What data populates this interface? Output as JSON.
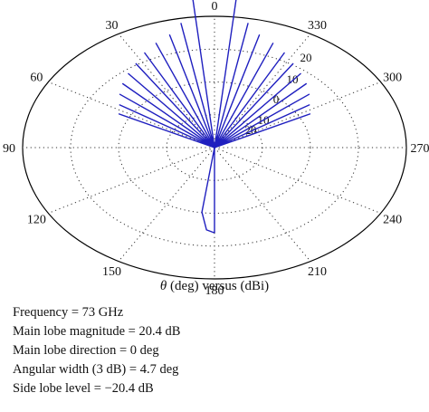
{
  "chart_data": {
    "type": "polar",
    "angle_labels": [
      "0",
      "30",
      "60",
      "90",
      "120",
      "150",
      "180",
      "210",
      "240",
      "270",
      "300",
      "330"
    ],
    "angle_directions_deg": [
      0,
      30,
      60,
      90,
      120,
      150,
      180,
      210,
      240,
      270,
      300,
      330
    ],
    "radial_tick_labels": [
      "20",
      "10",
      "0",
      "10",
      "20"
    ],
    "radial_range_dbi": [
      -20.4,
      20.4
    ],
    "grid": true,
    "axis_label_prefix": "θ",
    "axis_label_rest": " (deg) versus (dBi)",
    "line_color": "#1f1fbf",
    "grid_color": "#333333",
    "pattern": [
      {
        "theta_deg": -180,
        "gain_dbi": -7.6
      },
      {
        "theta_deg": -150,
        "gain_dbi": -20.4
      },
      {
        "theta_deg": -120,
        "gain_dbi": -20.4
      },
      {
        "theta_deg": -90,
        "gain_dbi": -20.4
      },
      {
        "theta_deg": -75,
        "gain_dbi": -20.4
      },
      {
        "theta_deg": -64,
        "gain_dbi": -8.9
      },
      {
        "theta_deg": -62,
        "gain_dbi": -20.4
      },
      {
        "theta_deg": -58,
        "gain_dbi": -8.3
      },
      {
        "theta_deg": -56,
        "gain_dbi": -20.4
      },
      {
        "theta_deg": -52,
        "gain_dbi": -7.4
      },
      {
        "theta_deg": -50,
        "gain_dbi": -20.4
      },
      {
        "theta_deg": -46,
        "gain_dbi": -6.6
      },
      {
        "theta_deg": -44,
        "gain_dbi": -20.4
      },
      {
        "theta_deg": -40,
        "gain_dbi": -5.9
      },
      {
        "theta_deg": -38,
        "gain_dbi": -20.4
      },
      {
        "theta_deg": -34,
        "gain_dbi": -5.2
      },
      {
        "theta_deg": -32,
        "gain_dbi": -20.4
      },
      {
        "theta_deg": -28,
        "gain_dbi": -4.3
      },
      {
        "theta_deg": -26,
        "gain_dbi": -20.4
      },
      {
        "theta_deg": -22,
        "gain_dbi": -3.5
      },
      {
        "theta_deg": -20,
        "gain_dbi": -20.4
      },
      {
        "theta_deg": -16,
        "gain_dbi": -2.8
      },
      {
        "theta_deg": -14,
        "gain_dbi": -20.4
      },
      {
        "theta_deg": -11,
        "gain_dbi": -1.4
      },
      {
        "theta_deg": -9,
        "gain_dbi": -20.4
      },
      {
        "theta_deg": -6,
        "gain_dbi": 2.0
      },
      {
        "theta_deg": -4.5,
        "gain_dbi": 13.0
      },
      {
        "theta_deg": -3,
        "gain_dbi": 18.2
      },
      {
        "theta_deg": -1.5,
        "gain_dbi": 20.0
      },
      {
        "theta_deg": 0,
        "gain_dbi": 20.4
      },
      {
        "theta_deg": 1.5,
        "gain_dbi": 20.0
      },
      {
        "theta_deg": 3,
        "gain_dbi": 18.2
      },
      {
        "theta_deg": 4.5,
        "gain_dbi": 13.0
      },
      {
        "theta_deg": 6,
        "gain_dbi": 2.0
      },
      {
        "theta_deg": 9,
        "gain_dbi": -20.4
      },
      {
        "theta_deg": 11,
        "gain_dbi": -1.4
      },
      {
        "theta_deg": 14,
        "gain_dbi": -20.4
      },
      {
        "theta_deg": 16,
        "gain_dbi": -2.8
      },
      {
        "theta_deg": 20,
        "gain_dbi": -20.4
      },
      {
        "theta_deg": 22,
        "gain_dbi": -3.5
      },
      {
        "theta_deg": 26,
        "gain_dbi": -20.4
      },
      {
        "theta_deg": 28,
        "gain_dbi": -4.3
      },
      {
        "theta_deg": 32,
        "gain_dbi": -20.4
      },
      {
        "theta_deg": 34,
        "gain_dbi": -5.2
      },
      {
        "theta_deg": 38,
        "gain_dbi": -20.4
      },
      {
        "theta_deg": 40,
        "gain_dbi": -5.9
      },
      {
        "theta_deg": 44,
        "gain_dbi": -20.4
      },
      {
        "theta_deg": 46,
        "gain_dbi": -6.6
      },
      {
        "theta_deg": 50,
        "gain_dbi": -20.4
      },
      {
        "theta_deg": 52,
        "gain_dbi": -7.4
      },
      {
        "theta_deg": 56,
        "gain_dbi": -20.4
      },
      {
        "theta_deg": 58,
        "gain_dbi": -8.3
      },
      {
        "theta_deg": 62,
        "gain_dbi": -20.4
      },
      {
        "theta_deg": 64,
        "gain_dbi": -8.9
      },
      {
        "theta_deg": 75,
        "gain_dbi": -20.4
      },
      {
        "theta_deg": 90,
        "gain_dbi": -20.4
      },
      {
        "theta_deg": 120,
        "gain_dbi": -20.4
      },
      {
        "theta_deg": 150,
        "gain_dbi": -20.4
      },
      {
        "theta_deg": 167,
        "gain_dbi": -20.4
      },
      {
        "theta_deg": 172,
        "gain_dbi": -10.6
      },
      {
        "theta_deg": 176,
        "gain_dbi": -8.0
      },
      {
        "theta_deg": 180,
        "gain_dbi": -7.6
      }
    ]
  },
  "info": [
    {
      "label": "Frequency",
      "value": "73 GHz"
    },
    {
      "label": "Main lobe magnitude",
      "value": "20.4 dB"
    },
    {
      "label": "Main lobe direction",
      "value": "0 deg"
    },
    {
      "label": "Angular width (3 dB)",
      "value": "4.7 deg"
    },
    {
      "label": "Side lobe level",
      "value": "−20.4 dB"
    }
  ]
}
